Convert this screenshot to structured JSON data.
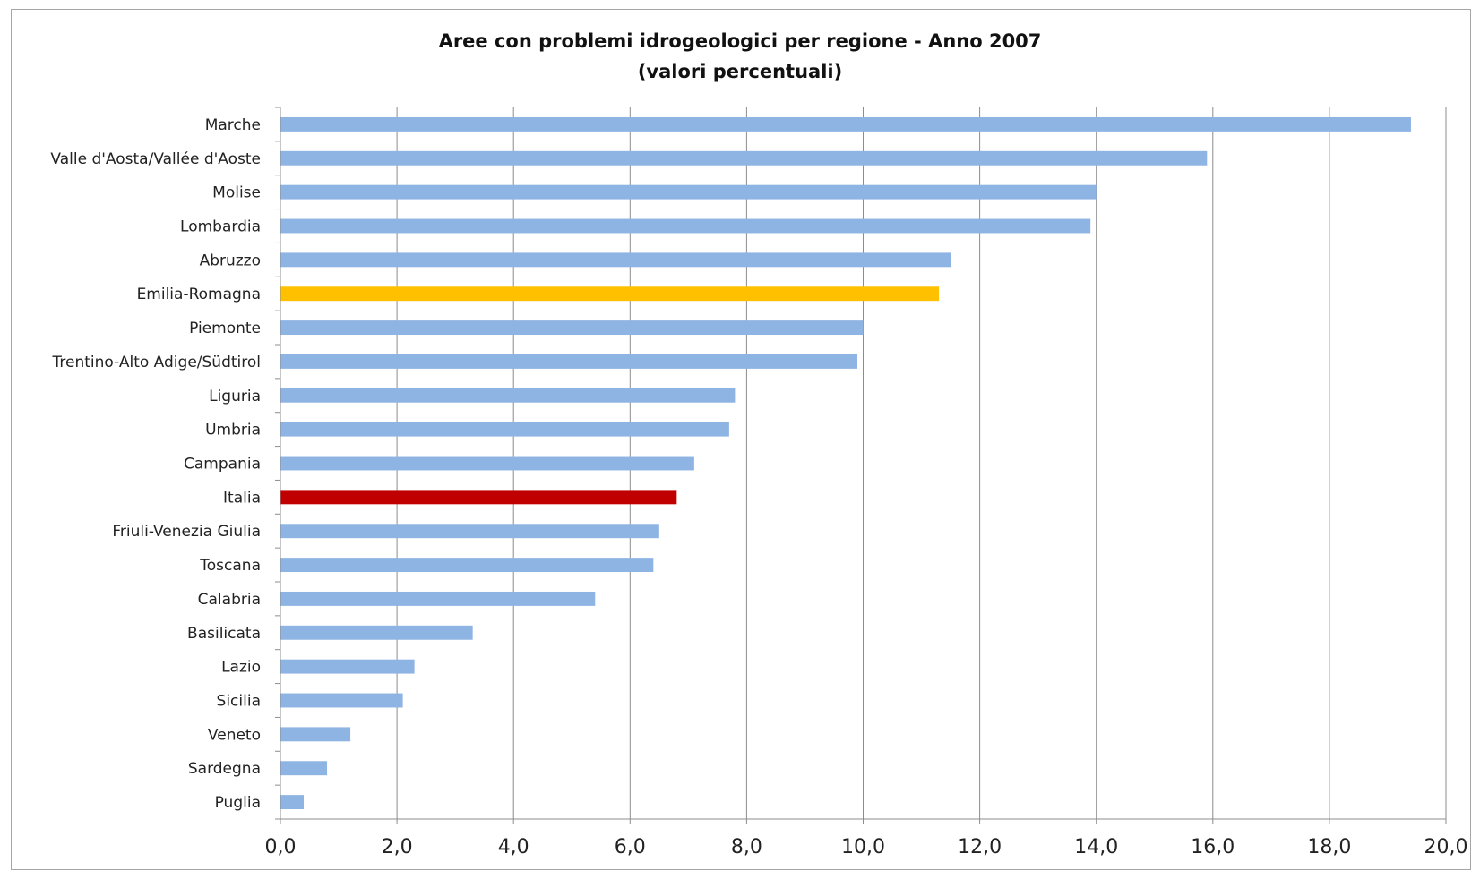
{
  "chart_data": {
    "type": "bar",
    "orientation": "horizontal",
    "title": "Aree con problemi idrogeologici per regione - Anno 2007",
    "subtitle": "(valori percentuali)",
    "xlabel": "",
    "ylabel": "",
    "xlim": [
      0,
      20
    ],
    "x_ticks": [
      "0,0",
      "2,0",
      "4,0",
      "6,0",
      "8,0",
      "10,0",
      "12,0",
      "14,0",
      "16,0",
      "18,0",
      "20,0"
    ],
    "grid": "vertical",
    "legend": "none",
    "categories": [
      "Marche",
      "Valle d'Aosta/Vallée d'Aoste",
      "Molise",
      "Lombardia",
      "Abruzzo",
      "Emilia-Romagna",
      "Piemonte",
      "Trentino-Alto Adige/Südtirol",
      "Liguria",
      "Umbria",
      "Campania",
      "Italia",
      "Friuli-Venezia Giulia",
      "Toscana",
      "Calabria",
      "Basilicata",
      "Lazio",
      "Sicilia",
      "Veneto",
      "Sardegna",
      "Puglia"
    ],
    "values": [
      19.4,
      15.9,
      14.0,
      13.9,
      11.5,
      11.3,
      10.0,
      9.9,
      7.8,
      7.7,
      7.1,
      6.8,
      6.5,
      6.4,
      5.4,
      3.3,
      2.3,
      2.1,
      1.2,
      0.8,
      0.4
    ],
    "colors": {
      "default": "#8eb4e3",
      "Emilia-Romagna": "#ffc000",
      "Italia": "#c00000"
    }
  }
}
